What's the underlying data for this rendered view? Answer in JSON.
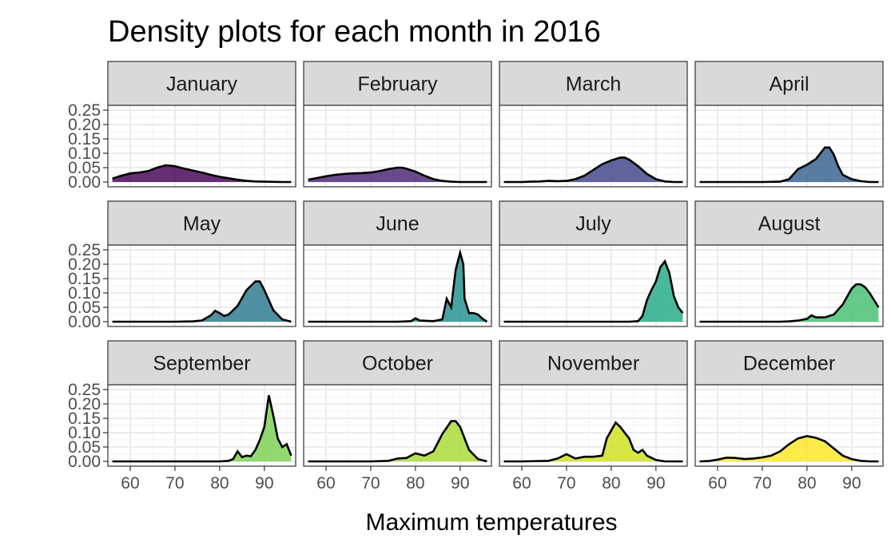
{
  "chart_data": {
    "type": "area",
    "title": "Density plots for each month in 2016",
    "xlabel": "Maximum temperatures",
    "ylabel": "",
    "xlim": [
      55,
      97
    ],
    "ylim": [
      0,
      0.25
    ],
    "x_ticks": [
      60,
      70,
      80,
      90
    ],
    "x_tick_labels": [
      "60",
      "70",
      "80",
      "90"
    ],
    "y_ticks": [
      0,
      0.05,
      0.1,
      0.15,
      0.2,
      0.25
    ],
    "y_tick_labels": [
      "0.00",
      "0.05",
      "0.10",
      "0.15",
      "0.20",
      "0.25"
    ],
    "grid": true,
    "legend": "none",
    "panels": [
      {
        "name": "January",
        "color": "#440154",
        "points": [
          [
            56,
            0.012
          ],
          [
            58,
            0.022
          ],
          [
            60,
            0.03
          ],
          [
            62,
            0.033
          ],
          [
            64,
            0.038
          ],
          [
            66,
            0.05
          ],
          [
            68,
            0.058
          ],
          [
            70,
            0.055
          ],
          [
            72,
            0.047
          ],
          [
            74,
            0.04
          ],
          [
            76,
            0.033
          ],
          [
            78,
            0.025
          ],
          [
            80,
            0.018
          ],
          [
            82,
            0.013
          ],
          [
            84,
            0.008
          ],
          [
            86,
            0.004
          ],
          [
            88,
            0.002
          ],
          [
            90,
            0.001
          ],
          [
            94,
            0.0
          ],
          [
            96,
            0.0
          ]
        ]
      },
      {
        "name": "February",
        "color": "#482374",
        "points": [
          [
            56,
            0.008
          ],
          [
            58,
            0.014
          ],
          [
            60,
            0.02
          ],
          [
            62,
            0.025
          ],
          [
            64,
            0.028
          ],
          [
            66,
            0.03
          ],
          [
            68,
            0.031
          ],
          [
            70,
            0.033
          ],
          [
            72,
            0.038
          ],
          [
            74,
            0.045
          ],
          [
            76,
            0.05
          ],
          [
            77,
            0.05
          ],
          [
            78,
            0.046
          ],
          [
            80,
            0.036
          ],
          [
            82,
            0.022
          ],
          [
            84,
            0.01
          ],
          [
            86,
            0.004
          ],
          [
            88,
            0.001
          ],
          [
            90,
            0.0
          ],
          [
            96,
            0.0
          ]
        ]
      },
      {
        "name": "March",
        "color": "#404387",
        "points": [
          [
            56,
            0.0
          ],
          [
            60,
            0.0
          ],
          [
            62,
            0.001
          ],
          [
            64,
            0.002
          ],
          [
            66,
            0.004
          ],
          [
            68,
            0.003
          ],
          [
            70,
            0.004
          ],
          [
            72,
            0.01
          ],
          [
            74,
            0.022
          ],
          [
            76,
            0.042
          ],
          [
            78,
            0.062
          ],
          [
            80,
            0.075
          ],
          [
            82,
            0.085
          ],
          [
            83,
            0.085
          ],
          [
            84,
            0.078
          ],
          [
            86,
            0.055
          ],
          [
            88,
            0.028
          ],
          [
            90,
            0.01
          ],
          [
            92,
            0.002
          ],
          [
            94,
            0.0
          ],
          [
            96,
            0.0
          ]
        ]
      },
      {
        "name": "April",
        "color": "#345f8d",
        "points": [
          [
            56,
            0.0
          ],
          [
            70,
            0.0
          ],
          [
            74,
            0.001
          ],
          [
            76,
            0.01
          ],
          [
            78,
            0.045
          ],
          [
            80,
            0.06
          ],
          [
            82,
            0.08
          ],
          [
            84,
            0.12
          ],
          [
            85,
            0.12
          ],
          [
            86,
            0.095
          ],
          [
            87,
            0.055
          ],
          [
            88,
            0.025
          ],
          [
            90,
            0.01
          ],
          [
            92,
            0.003
          ],
          [
            94,
            0.0
          ],
          [
            96,
            0.0
          ]
        ]
      },
      {
        "name": "May",
        "color": "#29788e",
        "points": [
          [
            56,
            0.0
          ],
          [
            70,
            0.0
          ],
          [
            74,
            0.001
          ],
          [
            76,
            0.004
          ],
          [
            78,
            0.022
          ],
          [
            79,
            0.038
          ],
          [
            80,
            0.03
          ],
          [
            81,
            0.02
          ],
          [
            82,
            0.025
          ],
          [
            84,
            0.055
          ],
          [
            86,
            0.11
          ],
          [
            88,
            0.14
          ],
          [
            89,
            0.14
          ],
          [
            90,
            0.11
          ],
          [
            92,
            0.04
          ],
          [
            94,
            0.008
          ],
          [
            96,
            0.0
          ]
        ]
      },
      {
        "name": "June",
        "color": "#20908d",
        "points": [
          [
            56,
            0.0
          ],
          [
            76,
            0.0
          ],
          [
            79,
            0.002
          ],
          [
            80,
            0.012
          ],
          [
            81,
            0.004
          ],
          [
            84,
            0.002
          ],
          [
            86,
            0.008
          ],
          [
            87,
            0.08
          ],
          [
            88,
            0.05
          ],
          [
            89,
            0.18
          ],
          [
            90,
            0.24
          ],
          [
            90.7,
            0.2
          ],
          [
            91,
            0.08
          ],
          [
            92,
            0.03
          ],
          [
            93,
            0.03
          ],
          [
            94,
            0.025
          ],
          [
            95,
            0.01
          ],
          [
            96,
            0.0
          ]
        ]
      },
      {
        "name": "July",
        "color": "#22a884",
        "points": [
          [
            56,
            0.0
          ],
          [
            80,
            0.0
          ],
          [
            84,
            0.0
          ],
          [
            86,
            0.002
          ],
          [
            87,
            0.02
          ],
          [
            88,
            0.075
          ],
          [
            89,
            0.11
          ],
          [
            90,
            0.14
          ],
          [
            91,
            0.19
          ],
          [
            92,
            0.21
          ],
          [
            93,
            0.17
          ],
          [
            94,
            0.09
          ],
          [
            95,
            0.05
          ],
          [
            96,
            0.03
          ]
        ]
      },
      {
        "name": "August",
        "color": "#44bf70",
        "points": [
          [
            56,
            0.0
          ],
          [
            74,
            0.0
          ],
          [
            76,
            0.001
          ],
          [
            78,
            0.004
          ],
          [
            80,
            0.01
          ],
          [
            81,
            0.022
          ],
          [
            82,
            0.015
          ],
          [
            84,
            0.015
          ],
          [
            86,
            0.025
          ],
          [
            88,
            0.06
          ],
          [
            90,
            0.115
          ],
          [
            91,
            0.13
          ],
          [
            92,
            0.13
          ],
          [
            93,
            0.12
          ],
          [
            94,
            0.1
          ],
          [
            95,
            0.075
          ],
          [
            96,
            0.05
          ]
        ]
      },
      {
        "name": "September",
        "color": "#7ad151",
        "points": [
          [
            56,
            0.0
          ],
          [
            76,
            0.0
          ],
          [
            80,
            0.0
          ],
          [
            82,
            0.002
          ],
          [
            83,
            0.008
          ],
          [
            84,
            0.035
          ],
          [
            85,
            0.015
          ],
          [
            86,
            0.02
          ],
          [
            87,
            0.018
          ],
          [
            88,
            0.04
          ],
          [
            89,
            0.075
          ],
          [
            90,
            0.12
          ],
          [
            91,
            0.23
          ],
          [
            92,
            0.16
          ],
          [
            93,
            0.08
          ],
          [
            94,
            0.05
          ],
          [
            95,
            0.06
          ],
          [
            96,
            0.02
          ]
        ]
      },
      {
        "name": "October",
        "color": "#a8db34",
        "points": [
          [
            56,
            0.0
          ],
          [
            70,
            0.0
          ],
          [
            74,
            0.002
          ],
          [
            76,
            0.01
          ],
          [
            78,
            0.012
          ],
          [
            80,
            0.028
          ],
          [
            82,
            0.02
          ],
          [
            84,
            0.035
          ],
          [
            86,
            0.095
          ],
          [
            88,
            0.14
          ],
          [
            89,
            0.14
          ],
          [
            90,
            0.12
          ],
          [
            92,
            0.04
          ],
          [
            94,
            0.008
          ],
          [
            96,
            0.0
          ]
        ]
      },
      {
        "name": "November",
        "color": "#d0e11c",
        "points": [
          [
            56,
            0.0
          ],
          [
            60,
            0.0
          ],
          [
            66,
            0.002
          ],
          [
            68,
            0.01
          ],
          [
            70,
            0.025
          ],
          [
            72,
            0.01
          ],
          [
            74,
            0.016
          ],
          [
            76,
            0.016
          ],
          [
            78,
            0.02
          ],
          [
            79,
            0.08
          ],
          [
            81,
            0.135
          ],
          [
            82,
            0.12
          ],
          [
            83,
            0.1
          ],
          [
            84,
            0.08
          ],
          [
            85,
            0.04
          ],
          [
            86,
            0.03
          ],
          [
            87,
            0.04
          ],
          [
            88,
            0.02
          ],
          [
            90,
            0.005
          ],
          [
            92,
            0.0
          ],
          [
            96,
            0.0
          ]
        ]
      },
      {
        "name": "December",
        "color": "#fde725",
        "points": [
          [
            56,
            0.0
          ],
          [
            58,
            0.001
          ],
          [
            60,
            0.006
          ],
          [
            62,
            0.013
          ],
          [
            64,
            0.012
          ],
          [
            66,
            0.008
          ],
          [
            68,
            0.01
          ],
          [
            70,
            0.014
          ],
          [
            72,
            0.02
          ],
          [
            74,
            0.035
          ],
          [
            76,
            0.06
          ],
          [
            78,
            0.08
          ],
          [
            80,
            0.088
          ],
          [
            82,
            0.082
          ],
          [
            84,
            0.07
          ],
          [
            86,
            0.045
          ],
          [
            88,
            0.02
          ],
          [
            90,
            0.008
          ],
          [
            92,
            0.002
          ],
          [
            94,
            0.0
          ],
          [
            96,
            0.0
          ]
        ]
      }
    ]
  }
}
